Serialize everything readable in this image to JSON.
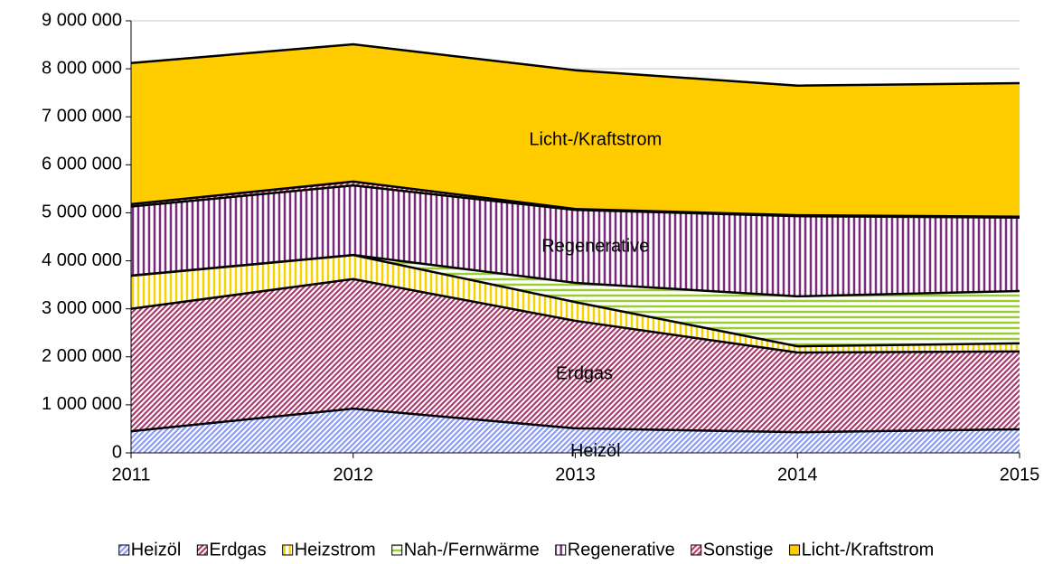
{
  "chart_data": {
    "type": "stacked_area",
    "x": [
      2011,
      2012,
      2013,
      2014,
      2015
    ],
    "xlim": [
      2011,
      2015
    ],
    "xticks": [
      2011,
      2012,
      2013,
      2014,
      2015
    ],
    "ylim": [
      0,
      9000000
    ],
    "yticks": [
      {
        "value": 0,
        "label": "0"
      },
      {
        "value": 1000000,
        "label": "1 000 000"
      },
      {
        "value": 2000000,
        "label": "2 000 000"
      },
      {
        "value": 3000000,
        "label": "3 000 000"
      },
      {
        "value": 4000000,
        "label": "4 000 000"
      },
      {
        "value": 5000000,
        "label": "5 000 000"
      },
      {
        "value": 6000000,
        "label": "6 000 000"
      },
      {
        "value": 7000000,
        "label": "7 000 000"
      },
      {
        "value": 8000000,
        "label": "8 000 000"
      },
      {
        "value": 9000000,
        "label": "9 000 000"
      }
    ],
    "grid": true,
    "legend": "bottom",
    "series": [
      {
        "name": "Heizöl",
        "color": "#8f9bf0",
        "pattern": "diagonal",
        "values": [
          450000,
          920000,
          510000,
          430000,
          490000
        ]
      },
      {
        "name": "Erdgas",
        "color": "#a0406a",
        "pattern": "diagonal",
        "values": [
          2550000,
          2700000,
          2240000,
          1660000,
          1620000
        ]
      },
      {
        "name": "Heizstrom",
        "color": "#f5d200",
        "pattern": "vertical",
        "values": [
          690000,
          500000,
          390000,
          130000,
          170000
        ]
      },
      {
        "name": "Nah-/Fernwärme",
        "color": "#9acd32",
        "pattern": "horizontal",
        "values": [
          0,
          0,
          400000,
          1040000,
          1090000
        ]
      },
      {
        "name": "Regenerative",
        "color": "#7a2a7a",
        "pattern": "vertical",
        "values": [
          1440000,
          1450000,
          1520000,
          1670000,
          1530000
        ]
      },
      {
        "name": "Sonstige",
        "color": "#c04060",
        "pattern": "diagonal",
        "values": [
          50000,
          80000,
          20000,
          20000,
          20000
        ]
      },
      {
        "name": "Licht-/Kraftstrom",
        "color": "#ffcc00",
        "pattern": "solid",
        "values": [
          2940000,
          2860000,
          2890000,
          2700000,
          2780000
        ]
      }
    ]
  }
}
